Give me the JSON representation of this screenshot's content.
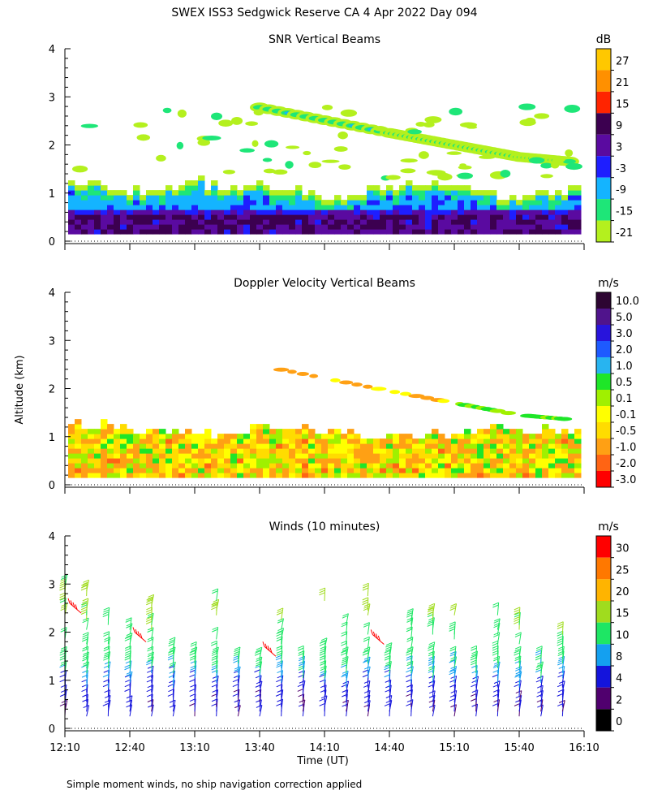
{
  "title": "SWEX ISS3 Sedgwick Reserve CA   4 Apr 2022 Day 094",
  "footnote": "Simple moment winds, no ship navigation correction applied",
  "y_axis_label": "Altitude (km)",
  "x_axis_label": "Time (UT)",
  "chart_data": [
    {
      "type": "heatmap",
      "title": "SNR Vertical Beams",
      "xlabel": "Time (UT)",
      "ylabel": "Altitude (km)",
      "xlim": [
        "12:10",
        "16:10"
      ],
      "ylim": [
        0,
        4
      ],
      "yticks": [
        0,
        1,
        2,
        3,
        4
      ],
      "colorbar": {
        "unit": "dB",
        "labels": [
          "27",
          "21",
          "15",
          "9",
          "3",
          "-3",
          "-9",
          "-15",
          "-21"
        ],
        "colors": [
          "#ffc800",
          "#ff9000",
          "#ff2400",
          "#3c0050",
          "#5a0aa0",
          "#1e1eff",
          "#14b4ff",
          "#1ee678",
          "#b4f01e"
        ]
      },
      "features": {
        "boundary_layer_top_km": 1.2,
        "elevated_layer": [
          {
            "time": "13:40",
            "alt_km": 2.78
          },
          {
            "time": "14:40",
            "alt_km": 2.25
          },
          {
            "time": "15:10",
            "alt_km": 2.0
          },
          {
            "time": "15:40",
            "alt_km": 1.75
          },
          {
            "time": "16:05",
            "alt_km": 1.65
          }
        ]
      }
    },
    {
      "type": "heatmap",
      "title": "Doppler Velocity Vertical Beams",
      "xlabel": "Time (UT)",
      "ylabel": "Altitude (km)",
      "xlim": [
        "12:10",
        "16:10"
      ],
      "ylim": [
        0,
        4
      ],
      "yticks": [
        0,
        1,
        2,
        3,
        4
      ],
      "colorbar": {
        "unit": "m/s",
        "labels": [
          "10.0",
          "5.0",
          "3.0",
          "2.0",
          "1.0",
          "0.5",
          "0.1",
          "-0.1",
          "-0.5",
          "-1.0",
          "-2.0",
          "-3.0"
        ],
        "colors": [
          "#2d0532",
          "#50148c",
          "#2814dc",
          "#1e5aff",
          "#28b4f0",
          "#1ee628",
          "#a0f000",
          "#ffff00",
          "#ffdc00",
          "#ffa014",
          "#ff6414",
          "#ff0000"
        ]
      }
    },
    {
      "type": "wind_barbs",
      "title": "Winds (10 minutes)",
      "xlabel": "Time (UT)",
      "ylabel": "Altitude (km)",
      "xlim": [
        "12:10",
        "16:10"
      ],
      "xticks": [
        "12:10",
        "12:40",
        "13:10",
        "13:40",
        "14:10",
        "14:40",
        "15:10",
        "15:40",
        "16:10"
      ],
      "ylim": [
        0,
        4
      ],
      "yticks": [
        0,
        1,
        2,
        3,
        4
      ],
      "colorbar": {
        "unit": "m/s",
        "labels": [
          "30",
          "25",
          "20",
          "15",
          "10",
          "8",
          "4",
          "2",
          "0"
        ],
        "colors": [
          "#ff0000",
          "#ff7800",
          "#ffb400",
          "#a0dc1e",
          "#1ee664",
          "#14a0f0",
          "#1414dc",
          "#50006e",
          "#000000"
        ]
      },
      "profile_times": [
        "12:10",
        "12:20",
        "12:30",
        "12:40",
        "12:50",
        "13:00",
        "13:10",
        "13:20",
        "13:30",
        "13:40",
        "13:50",
        "14:00",
        "14:10",
        "14:20",
        "14:30",
        "14:40",
        "14:50",
        "15:00",
        "15:10",
        "15:20",
        "15:30",
        "15:40",
        "15:50",
        "16:00"
      ],
      "speed_profile_ms": [
        {
          "alt_km": 0.3,
          "speed": 4
        },
        {
          "alt_km": 0.7,
          "speed": 6
        },
        {
          "alt_km": 1.0,
          "speed": 9
        },
        {
          "alt_km": 1.5,
          "speed": 12
        },
        {
          "alt_km": 2.0,
          "speed": 14
        },
        {
          "alt_km": 2.5,
          "speed": 16
        },
        {
          "alt_km": 3.0,
          "speed": 15
        }
      ]
    }
  ]
}
